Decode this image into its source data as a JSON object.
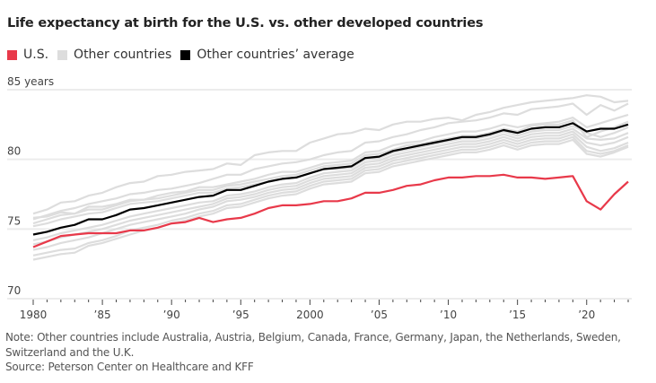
{
  "chart_data": {
    "type": "line",
    "title": "Life expectancy at birth for the U.S. vs. other developed countries",
    "xlabel": "",
    "ylabel": "years",
    "ylim": [
      70,
      85
    ],
    "xlim": [
      1980,
      2023
    ],
    "grid": true,
    "y_ticks": [
      {
        "value": 85,
        "label": "85 years"
      },
      {
        "value": 80,
        "label": "80"
      },
      {
        "value": 75,
        "label": "75"
      },
      {
        "value": 70,
        "label": "70"
      }
    ],
    "x_ticks": [
      {
        "value": 1980,
        "label": "1980"
      },
      {
        "value": 1985,
        "label": "’85"
      },
      {
        "value": 1990,
        "label": "’90"
      },
      {
        "value": 1995,
        "label": "’95"
      },
      {
        "value": 2000,
        "label": "2000"
      },
      {
        "value": 2005,
        "label": "’05"
      },
      {
        "value": 2010,
        "label": "’10"
      },
      {
        "value": 2015,
        "label": "’15"
      },
      {
        "value": 2020,
        "label": "’20"
      }
    ],
    "legend": [
      {
        "label": "U.S.",
        "color": "#e8394a"
      },
      {
        "label": "Other countries",
        "color": "#dddddd"
      },
      {
        "label": "Other countries’ average",
        "color": "#000000"
      }
    ],
    "x": [
      1980,
      1981,
      1982,
      1983,
      1984,
      1985,
      1986,
      1987,
      1988,
      1989,
      1990,
      1991,
      1992,
      1993,
      1994,
      1995,
      1996,
      1997,
      1998,
      1999,
      2000,
      2001,
      2002,
      2003,
      2004,
      2005,
      2006,
      2007,
      2008,
      2009,
      2010,
      2011,
      2012,
      2013,
      2014,
      2015,
      2016,
      2017,
      2018,
      2019,
      2020,
      2021,
      2022,
      2023
    ],
    "series": [
      {
        "name": "U.S.",
        "color": "#e8394a",
        "role": "highlight",
        "values": [
          73.7,
          74.1,
          74.5,
          74.6,
          74.7,
          74.7,
          74.7,
          74.9,
          74.9,
          75.1,
          75.4,
          75.5,
          75.8,
          75.5,
          75.7,
          75.8,
          76.1,
          76.5,
          76.7,
          76.7,
          76.8,
          77.0,
          77.0,
          77.2,
          77.6,
          77.6,
          77.8,
          78.1,
          78.2,
          78.5,
          78.7,
          78.7,
          78.8,
          78.8,
          78.9,
          78.7,
          78.7,
          78.6,
          78.7,
          78.8,
          77.0,
          76.4,
          77.5,
          78.4
        ]
      },
      {
        "name": "Other countries’ average",
        "color": "#000000",
        "role": "average",
        "values": [
          74.6,
          74.8,
          75.1,
          75.3,
          75.7,
          75.7,
          76.0,
          76.4,
          76.5,
          76.7,
          76.9,
          77.1,
          77.3,
          77.4,
          77.8,
          77.8,
          78.1,
          78.4,
          78.6,
          78.7,
          79.0,
          79.3,
          79.4,
          79.5,
          80.1,
          80.2,
          80.6,
          80.8,
          81.0,
          81.2,
          81.4,
          81.6,
          81.6,
          81.8,
          82.1,
          81.9,
          82.2,
          82.3,
          82.3,
          82.6,
          82.0,
          82.2,
          82.2,
          82.5
        ]
      },
      {
        "name": "Other country 1",
        "color": "#dddddd",
        "role": "other",
        "values": [
          76.1,
          76.4,
          76.9,
          77.0,
          77.4,
          77.6,
          78.0,
          78.3,
          78.4,
          78.8,
          78.9,
          79.1,
          79.2,
          79.3,
          79.7,
          79.6,
          80.3,
          80.5,
          80.6,
          80.6,
          81.2,
          81.5,
          81.8,
          81.9,
          82.2,
          82.1,
          82.5,
          82.7,
          82.7,
          82.9,
          83.0,
          82.8,
          83.2,
          83.4,
          83.7,
          83.9,
          84.1,
          84.2,
          84.3,
          84.4,
          84.6,
          84.5,
          84.1,
          84.2
        ]
      },
      {
        "name": "Other country 2",
        "color": "#dddddd",
        "role": "other",
        "values": [
          75.7,
          76.0,
          76.3,
          76.5,
          76.8,
          77.0,
          77.2,
          77.5,
          77.6,
          77.8,
          77.9,
          78.1,
          78.3,
          78.6,
          78.9,
          78.9,
          79.3,
          79.5,
          79.7,
          79.8,
          80.0,
          80.3,
          80.5,
          80.6,
          81.2,
          81.3,
          81.6,
          81.8,
          82.1,
          82.3,
          82.6,
          82.7,
          82.8,
          83.0,
          83.3,
          83.2,
          83.6,
          83.7,
          83.8,
          84.0,
          83.2,
          83.9,
          83.5,
          84.0
        ]
      },
      {
        "name": "Other country 3",
        "color": "#dddddd",
        "role": "other",
        "values": [
          75.8,
          75.9,
          76.2,
          76.1,
          76.6,
          76.6,
          76.8,
          77.1,
          77.1,
          77.4,
          77.6,
          77.7,
          78.0,
          78.0,
          78.2,
          78.4,
          78.6,
          78.9,
          79.1,
          79.1,
          79.4,
          79.7,
          79.8,
          79.9,
          80.5,
          80.6,
          81.0,
          81.2,
          81.3,
          81.6,
          81.8,
          82.0,
          82.0,
          82.2,
          82.5,
          82.3,
          82.5,
          82.6,
          82.7,
          83.0,
          82.3,
          82.6,
          82.9,
          83.2
        ]
      },
      {
        "name": "Other country 4",
        "color": "#dddddd",
        "role": "other",
        "values": [
          75.4,
          75.7,
          76.0,
          76.1,
          76.4,
          76.4,
          76.7,
          77.0,
          77.1,
          77.2,
          77.4,
          77.6,
          77.8,
          77.8,
          78.1,
          78.2,
          78.4,
          78.6,
          78.8,
          78.9,
          79.2,
          79.5,
          79.6,
          79.7,
          80.3,
          80.4,
          80.7,
          81.0,
          81.1,
          81.3,
          81.5,
          81.7,
          81.7,
          81.9,
          82.2,
          82.0,
          82.4,
          82.5,
          82.5,
          82.8,
          81.6,
          82.0,
          82.3,
          82.7
        ]
      },
      {
        "name": "Other country 5",
        "color": "#dddddd",
        "role": "other",
        "values": [
          75.2,
          75.4,
          75.7,
          75.9,
          76.1,
          76.2,
          76.5,
          76.8,
          76.9,
          77.0,
          77.2,
          77.4,
          77.6,
          77.6,
          77.9,
          78.0,
          78.2,
          78.4,
          78.6,
          78.7,
          79.0,
          79.3,
          79.3,
          79.4,
          80.0,
          80.1,
          80.5,
          80.7,
          80.9,
          81.1,
          81.3,
          81.5,
          81.5,
          81.7,
          82.0,
          81.7,
          82.0,
          82.1,
          82.1,
          82.4,
          81.9,
          81.6,
          81.9,
          82.3
        ]
      },
      {
        "name": "Other country 6",
        "color": "#dddddd",
        "role": "other",
        "values": [
          74.2,
          74.4,
          74.7,
          74.9,
          75.1,
          75.3,
          75.6,
          75.9,
          76.1,
          76.3,
          76.5,
          76.7,
          76.9,
          77.0,
          77.4,
          77.5,
          77.7,
          78.0,
          78.2,
          78.3,
          78.7,
          79.0,
          79.1,
          79.2,
          79.8,
          79.9,
          80.3,
          80.5,
          80.7,
          80.9,
          81.1,
          81.3,
          81.3,
          81.5,
          81.8,
          81.5,
          81.8,
          81.9,
          81.9,
          82.2,
          81.5,
          81.4,
          81.5,
          81.9
        ]
      },
      {
        "name": "Other country 7",
        "color": "#dddddd",
        "role": "other",
        "values": [
          73.9,
          74.1,
          74.4,
          74.6,
          74.8,
          75.0,
          75.3,
          75.6,
          75.8,
          76.0,
          76.2,
          76.4,
          76.6,
          76.8,
          77.2,
          77.3,
          77.5,
          77.8,
          78.0,
          78.1,
          78.5,
          78.8,
          78.9,
          79.0,
          79.6,
          79.7,
          80.1,
          80.3,
          80.5,
          80.7,
          80.9,
          81.1,
          81.1,
          81.3,
          81.6,
          81.3,
          81.6,
          81.7,
          81.7,
          82.0,
          81.2,
          81.0,
          81.2,
          81.6
        ]
      },
      {
        "name": "Other country 8",
        "color": "#dddddd",
        "role": "other",
        "values": [
          73.5,
          73.7,
          74.0,
          74.2,
          74.4,
          74.7,
          75.0,
          75.3,
          75.5,
          75.7,
          75.9,
          76.1,
          76.4,
          76.6,
          77.0,
          77.1,
          77.3,
          77.6,
          77.8,
          77.9,
          78.3,
          78.6,
          78.7,
          78.8,
          79.4,
          79.5,
          79.9,
          80.1,
          80.3,
          80.5,
          80.7,
          80.9,
          80.9,
          81.1,
          81.4,
          81.1,
          81.4,
          81.5,
          81.5,
          81.8,
          80.9,
          80.6,
          80.8,
          81.2
        ]
      },
      {
        "name": "Other country 9",
        "color": "#dddddd",
        "role": "other",
        "values": [
          73.1,
          73.3,
          73.5,
          73.6,
          74.0,
          74.2,
          74.5,
          74.9,
          75.1,
          75.3,
          75.6,
          75.8,
          76.1,
          76.3,
          76.7,
          76.8,
          77.1,
          77.4,
          77.6,
          77.7,
          78.1,
          78.4,
          78.5,
          78.6,
          79.2,
          79.3,
          79.7,
          79.9,
          80.1,
          80.3,
          80.5,
          80.7,
          80.7,
          80.9,
          81.2,
          80.9,
          81.2,
          81.3,
          81.3,
          81.6,
          80.6,
          80.4,
          80.6,
          81.0
        ]
      },
      {
        "name": "Other country 10",
        "color": "#dddddd",
        "role": "other",
        "values": [
          72.8,
          73.0,
          73.2,
          73.3,
          73.8,
          74.0,
          74.3,
          74.6,
          74.9,
          75.1,
          75.4,
          75.6,
          75.9,
          76.1,
          76.5,
          76.6,
          76.9,
          77.2,
          77.4,
          77.5,
          77.9,
          78.2,
          78.3,
          78.4,
          79.0,
          79.1,
          79.5,
          79.7,
          79.9,
          80.1,
          80.3,
          80.5,
          80.5,
          80.7,
          81.0,
          80.7,
          81.0,
          81.1,
          81.1,
          81.4,
          80.4,
          80.2,
          80.5,
          80.9
        ]
      }
    ],
    "note": "Note: Other countries include Australia, Austria, Belgium, Canada, France, Germany, Japan, the Netherlands, Sweden, Switzerland and the U.K.",
    "source": "Source: Peterson Center on Healthcare and KFF"
  },
  "legend_items": [
    {
      "label": "U.S."
    },
    {
      "label": "Other countries"
    },
    {
      "label": "Other countries’ average"
    }
  ],
  "footer": {
    "note_line1": "Note: Other countries include Australia, Austria, Belgium, Canada, France, Germany, Japan, the Netherlands, Sweden,",
    "note_line2": "Switzerland and the U.K.",
    "source": "Source: Peterson Center on Healthcare and KFF"
  }
}
